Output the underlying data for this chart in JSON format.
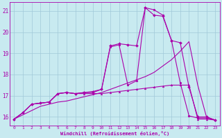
{
  "bg_color": "#c8eaf0",
  "grid_color": "#a0c8d8",
  "line_color": "#aa00aa",
  "xlabel": "Windchill (Refroidissement éolien,°C)",
  "xlim_min": -0.5,
  "xlim_max": 23.5,
  "ylim_min": 15.6,
  "ylim_max": 21.4,
  "yticks": [
    16,
    17,
    18,
    19,
    20,
    21
  ],
  "xticks": [
    0,
    1,
    2,
    3,
    4,
    5,
    6,
    7,
    8,
    9,
    10,
    11,
    12,
    13,
    14,
    15,
    16,
    17,
    18,
    19,
    20,
    21,
    22,
    23
  ],
  "line_spike": {
    "x": [
      0,
      1,
      2,
      3,
      4,
      5,
      6,
      7,
      8,
      9,
      10,
      11,
      12,
      13,
      14,
      15,
      16,
      17,
      18,
      19,
      20,
      21,
      22,
      23
    ],
    "y": [
      15.9,
      16.2,
      16.6,
      16.65,
      16.7,
      17.1,
      17.15,
      17.1,
      17.15,
      17.15,
      17.3,
      19.3,
      19.4,
      17.5,
      17.7,
      21.15,
      21.05,
      20.8,
      19.6,
      17.6,
      16.05,
      15.95,
      15.95,
      15.85
    ]
  },
  "line_diagonal": {
    "x": [
      0,
      1,
      2,
      3,
      4,
      5,
      6,
      7,
      8,
      9,
      10,
      11,
      12,
      13,
      14,
      15,
      16,
      17,
      18,
      19,
      20,
      21,
      22,
      23
    ],
    "y": [
      15.9,
      16.1,
      16.3,
      16.5,
      16.6,
      16.7,
      16.75,
      16.85,
      16.95,
      17.05,
      17.15,
      17.3,
      17.45,
      17.6,
      17.75,
      17.9,
      18.1,
      18.4,
      18.7,
      19.1,
      19.55,
      17.5,
      16.0,
      15.85
    ]
  },
  "line_flat": {
    "x": [
      0,
      1,
      2,
      3,
      4,
      5,
      6,
      7,
      8,
      9,
      10,
      11,
      12,
      13,
      14,
      15,
      16,
      17,
      18,
      19,
      20,
      21,
      22,
      23
    ],
    "y": [
      15.9,
      16.2,
      16.6,
      16.65,
      16.7,
      17.1,
      17.15,
      17.1,
      17.1,
      17.1,
      17.1,
      17.15,
      17.2,
      17.25,
      17.3,
      17.35,
      17.4,
      17.45,
      17.5,
      17.5,
      17.5,
      15.9,
      15.9,
      15.85
    ]
  },
  "line_peak2": {
    "x": [
      0,
      1,
      2,
      3,
      4,
      5,
      6,
      7,
      8,
      9,
      10,
      11,
      12,
      13,
      14,
      15,
      16,
      17,
      18,
      19,
      20,
      21,
      22,
      23
    ],
    "y": [
      15.9,
      16.2,
      16.6,
      16.65,
      16.7,
      17.1,
      17.15,
      17.1,
      17.15,
      17.2,
      17.3,
      19.35,
      19.45,
      19.4,
      19.35,
      21.15,
      20.8,
      20.75,
      19.6,
      19.5,
      17.4,
      16.0,
      16.0,
      15.85
    ]
  }
}
